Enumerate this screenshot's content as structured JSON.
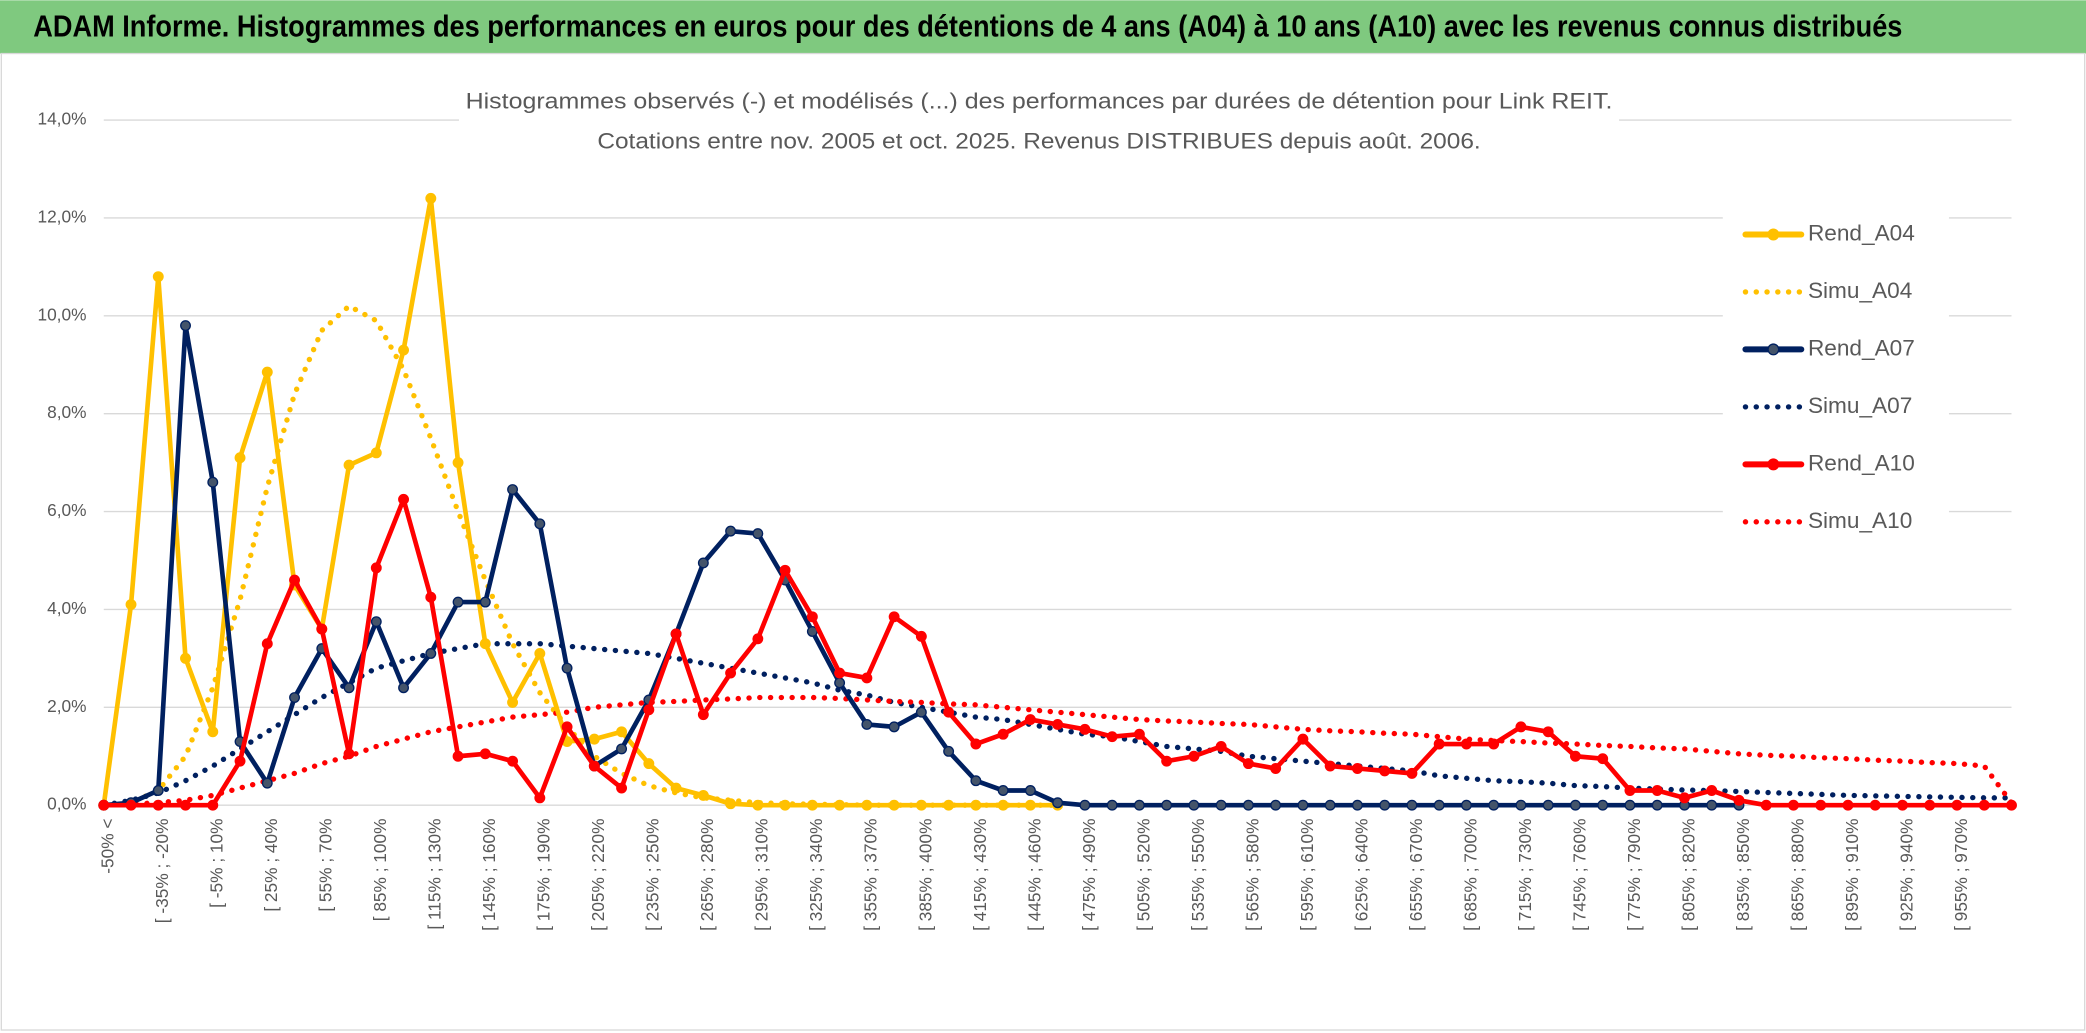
{
  "header": {
    "title": "ADAM Informe. Histogrammes des performances en euros pour des détentions de 4 ans (A04) à 10 ans (A10) avec les revenus connus distribués"
  },
  "chart_data": {
    "type": "line",
    "title": "Histogrammes observés (-) et modélisés (...) des performances par durées de détention pour Link REIT.",
    "subtitle": "Cotations entre nov. 2005 et oct. 2025. Revenus DISTRIBUES depuis août. 2006.",
    "categories": [
      "-50% <",
      null,
      "[ -35% ; -20%",
      null,
      "[ -5% ; 10%",
      null,
      "[ 25% ; 40%",
      null,
      "[ 55% ; 70%",
      null,
      "[ 85% ; 100%",
      null,
      "[ 115% ; 130%",
      null,
      "[ 145% ; 160%",
      null,
      "[ 175% ; 190%",
      null,
      "[ 205% ; 220%",
      null,
      "[ 235% ; 250%",
      null,
      "[ 265% ; 280%",
      null,
      "[ 295% ; 310%",
      null,
      "[ 325% ; 340%",
      null,
      "[ 355% ; 370%",
      null,
      "[ 385% ; 400%",
      null,
      "[ 415% ; 430%",
      null,
      "[ 445% ; 460%",
      null,
      "[ 475% ; 490%",
      null,
      "[ 505% ; 520%",
      null,
      "[ 535% ; 550%",
      null,
      "[ 565% ; 580%",
      null,
      "[ 595% ; 610%",
      null,
      "[ 625% ; 640%",
      null,
      "[ 655% ; 670%",
      null,
      "[ 685% ; 700%",
      null,
      "[ 715% ; 730%",
      null,
      "[ 745% ; 760%",
      null,
      "[ 775% ; 790%",
      null,
      "[ 805% ; 820%",
      null,
      "[ 835% ; 850%",
      null,
      "[ 865% ; 880%",
      null,
      "[ 895% ; 910%",
      null,
      "[ 925% ; 940%",
      null,
      "[ 955% ; 970%",
      null,
      null
    ],
    "ylim": [
      0,
      14
    ],
    "yticks": [
      {
        "value": 0,
        "label": "0,0%"
      },
      {
        "value": 2,
        "label": "2,0%"
      },
      {
        "value": 4,
        "label": "4,0%"
      },
      {
        "value": 6,
        "label": "6,0%"
      },
      {
        "value": 8,
        "label": "8,0%"
      },
      {
        "value": 10,
        "label": "10,0%"
      },
      {
        "value": 12,
        "label": "12,0%"
      },
      {
        "value": 14,
        "label": "14,0%"
      }
    ],
    "grid": true,
    "legend": "right",
    "series": [
      {
        "name": "Rend_A04",
        "color": "#FFC000",
        "style": "solid",
        "values": [
          0,
          4.1,
          10.8,
          3.0,
          1.5,
          7.1,
          8.85,
          4.5,
          3.6,
          6.95,
          7.2,
          9.3,
          12.4,
          7.0,
          3.3,
          2.1,
          3.1,
          1.3,
          1.35,
          1.5,
          0.85,
          0.35,
          0.2,
          0.03,
          0,
          0,
          0,
          0,
          0,
          0,
          0,
          0,
          0,
          0,
          0,
          0,
          null,
          null,
          null,
          null,
          null,
          null,
          null,
          null,
          null,
          null,
          null,
          null,
          null,
          null,
          null,
          null,
          null,
          null,
          null,
          null,
          null,
          null,
          null,
          null,
          null,
          null,
          null,
          null,
          null,
          null,
          null,
          null,
          null,
          null,
          null
        ]
      },
      {
        "name": "Simu_A04",
        "color": "#FFC000",
        "style": "dotted",
        "values": [
          0,
          0.05,
          0.3,
          1.0,
          2.4,
          4.2,
          6.5,
          8.4,
          9.7,
          10.2,
          9.9,
          8.9,
          7.5,
          6.0,
          4.6,
          3.3,
          2.3,
          1.6,
          1.0,
          0.65,
          0.4,
          0.25,
          0.15,
          0.1,
          0.05,
          0.03,
          0.02,
          0.01,
          0,
          0,
          0,
          0,
          0,
          0,
          0,
          0,
          null,
          null,
          null,
          null,
          null,
          null,
          null,
          null,
          null,
          null,
          null,
          null,
          null,
          null,
          null,
          null,
          null,
          null,
          null,
          null,
          null,
          null,
          null,
          null,
          null,
          null,
          null,
          null,
          null,
          null,
          null,
          null,
          null,
          null,
          null
        ]
      },
      {
        "name": "Rend_A07",
        "color": "#002060",
        "style": "solid",
        "values": [
          0,
          0.05,
          0.3,
          9.8,
          6.6,
          1.3,
          0.45,
          2.2,
          3.2,
          2.4,
          3.75,
          2.4,
          3.1,
          4.15,
          4.15,
          6.45,
          5.75,
          2.8,
          0.8,
          1.15,
          2.15,
          3.5,
          4.95,
          5.6,
          5.55,
          4.6,
          3.55,
          2.5,
          1.65,
          1.6,
          1.9,
          1.1,
          0.5,
          0.3,
          0.3,
          0.05,
          0,
          0,
          0,
          0,
          0,
          0,
          0,
          0,
          0,
          0,
          0,
          0,
          0,
          0,
          0,
          0,
          0,
          0,
          0,
          0,
          0,
          0,
          0,
          0,
          0,
          null,
          null,
          null,
          null,
          null,
          null,
          null,
          null,
          null,
          null
        ]
      },
      {
        "name": "Simu_A07",
        "color": "#002060",
        "style": "dotted",
        "values": [
          0,
          0.1,
          0.25,
          0.5,
          0.8,
          1.15,
          1.5,
          1.85,
          2.2,
          2.5,
          2.8,
          2.95,
          3.1,
          3.2,
          3.3,
          3.3,
          3.3,
          3.25,
          3.2,
          3.15,
          3.1,
          3.0,
          2.9,
          2.8,
          2.7,
          2.6,
          2.5,
          2.35,
          2.25,
          2.1,
          2.0,
          1.9,
          1.8,
          1.75,
          1.65,
          1.55,
          1.45,
          1.4,
          1.3,
          1.2,
          1.15,
          1.1,
          1.0,
          0.95,
          0.9,
          0.85,
          0.8,
          0.75,
          0.7,
          0.6,
          0.55,
          0.5,
          0.48,
          0.45,
          0.4,
          0.38,
          0.35,
          0.33,
          0.31,
          0.3,
          0.28,
          0.26,
          0.24,
          0.22,
          0.2,
          0.19,
          0.18,
          0.17,
          0.16,
          0.15,
          0.15
        ]
      },
      {
        "name": "Rend_A10",
        "color": "#FF0000",
        "style": "solid",
        "values": [
          0,
          0,
          0,
          0,
          0,
          0.9,
          3.3,
          4.6,
          3.6,
          1.05,
          4.85,
          6.25,
          4.25,
          1.0,
          1.05,
          0.9,
          0.15,
          1.6,
          0.8,
          0.35,
          1.95,
          3.5,
          1.85,
          2.7,
          3.4,
          4.8,
          3.85,
          2.7,
          2.6,
          3.85,
          3.45,
          1.9,
          1.25,
          1.45,
          1.75,
          1.65,
          1.55,
          1.4,
          1.45,
          0.9,
          1.0,
          1.2,
          0.85,
          0.75,
          1.35,
          0.8,
          0.75,
          0.7,
          0.65,
          1.25,
          1.25,
          1.25,
          1.6,
          1.5,
          1.0,
          0.95,
          0.3,
          0.3,
          0.15,
          0.3,
          0.1,
          0,
          0,
          0,
          0,
          0,
          0,
          0,
          0,
          0,
          0
        ]
      },
      {
        "name": "Simu_A10",
        "color": "#FF0000",
        "style": "dotted",
        "values": [
          0,
          0.02,
          0.05,
          0.1,
          0.2,
          0.35,
          0.5,
          0.65,
          0.85,
          1.0,
          1.2,
          1.35,
          1.5,
          1.6,
          1.7,
          1.8,
          1.85,
          1.9,
          2.0,
          2.05,
          2.1,
          2.12,
          2.15,
          2.17,
          2.2,
          2.2,
          2.2,
          2.18,
          2.15,
          2.12,
          2.1,
          2.07,
          2.05,
          2.0,
          1.95,
          1.9,
          1.85,
          1.8,
          1.75,
          1.72,
          1.7,
          1.67,
          1.65,
          1.6,
          1.55,
          1.52,
          1.5,
          1.47,
          1.45,
          1.4,
          1.35,
          1.32,
          1.3,
          1.27,
          1.25,
          1.22,
          1.2,
          1.17,
          1.15,
          1.1,
          1.05,
          1.02,
          1.0,
          0.97,
          0.95,
          0.92,
          0.9,
          0.87,
          0.85,
          0.8,
          0.05
        ]
      }
    ]
  }
}
